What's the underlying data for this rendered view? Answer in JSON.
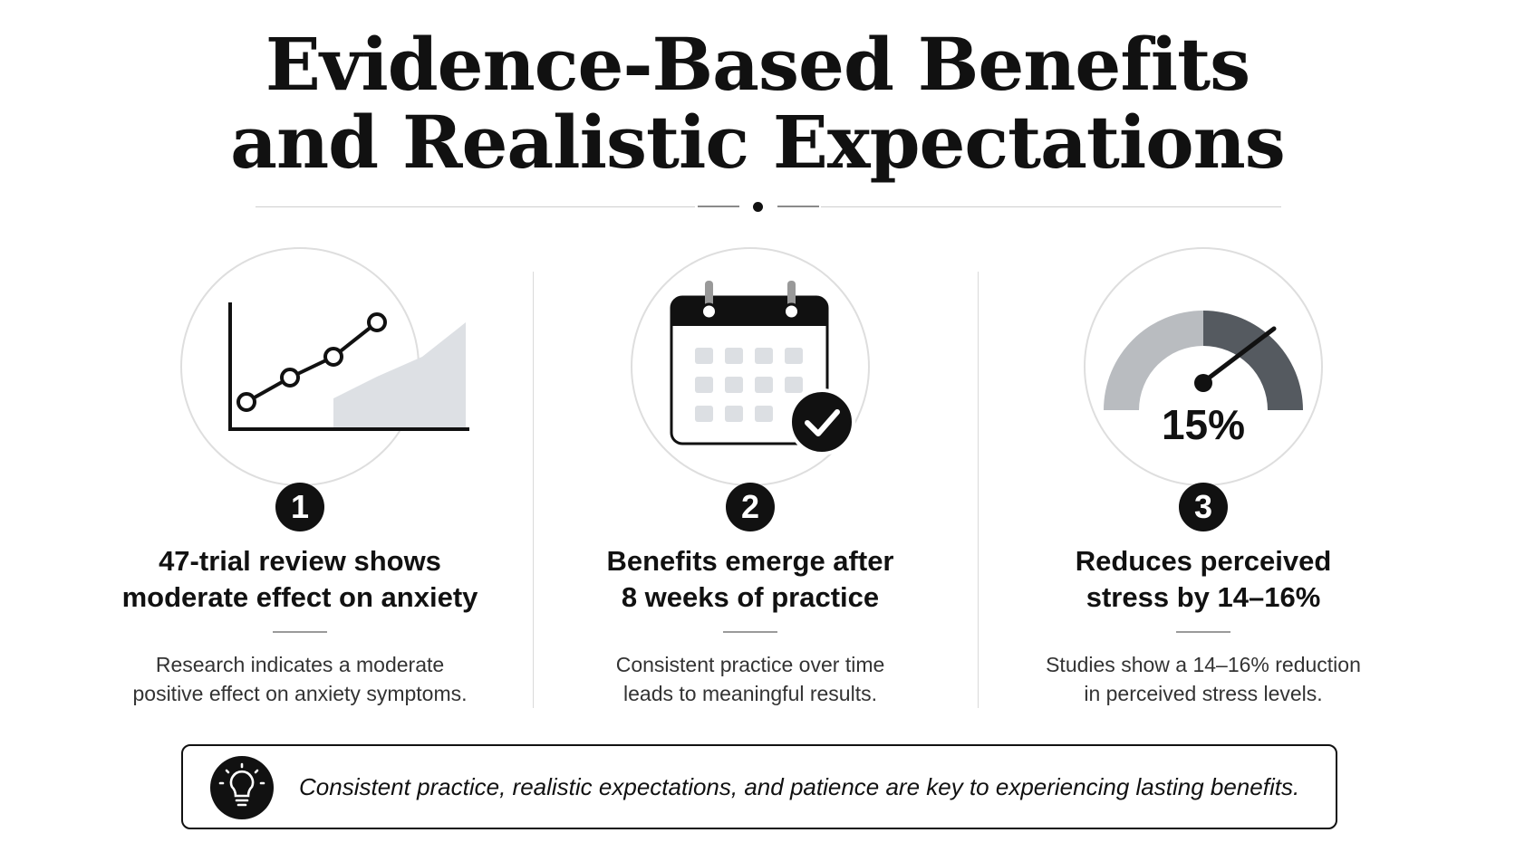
{
  "header": {
    "title_line1": "Evidence-Based Benefits",
    "title_line2": "and Realistic Expectations"
  },
  "cards": [
    {
      "number": "1",
      "icon": "line-chart-icon",
      "headline_line1": "47-trial review shows",
      "headline_line2": "moderate effect on anxiety",
      "desc_line1": "Research indicates a moderate",
      "desc_line2": "positive effect on anxiety symptoms."
    },
    {
      "number": "2",
      "icon": "calendar-check-icon",
      "headline_line1": "Benefits emerge after",
      "headline_line2": "8 weeks of practice",
      "desc_line1": "Consistent practice over time",
      "desc_line2": "leads to meaningful results."
    },
    {
      "number": "3",
      "icon": "gauge-icon",
      "gauge_value": "15%",
      "headline_line1": "Reduces perceived",
      "headline_line2": "stress by 14–16%",
      "desc_line1": "Studies show a 14–16% reduction",
      "desc_line2": "in perceived stress levels."
    }
  ],
  "tip": {
    "icon": "lightbulb-icon",
    "text": "Consistent practice, realistic expectations, and patience are key to experiencing lasting benefits."
  },
  "colors": {
    "ink": "#111111",
    "gauge_light": "#b9bcc0",
    "gauge_dark": "#555a60",
    "chart_fill": "#dde0e4",
    "calendar_cell": "#dcdfe3"
  }
}
